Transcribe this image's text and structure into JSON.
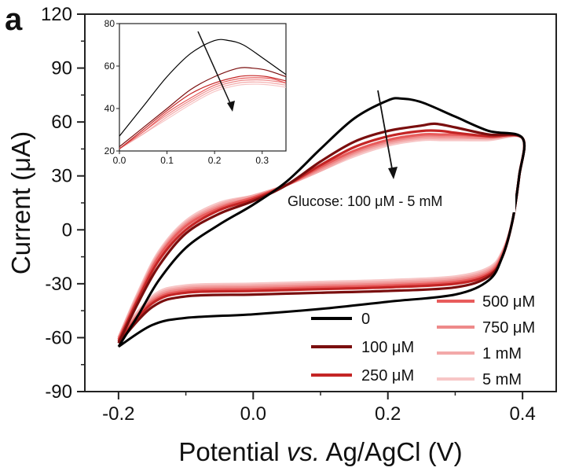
{
  "panel_label": "a",
  "chart_data": [
    {
      "type": "line",
      "subtype": "cyclic-voltammogram",
      "xlabel_parts": [
        "Potential ",
        "vs.",
        " Ag/AgCl (V)"
      ],
      "ylabel": "Current (μA)",
      "xlim": [
        -0.25,
        0.45
      ],
      "ylim": [
        -90,
        120
      ],
      "xticks": [
        -0.2,
        0.0,
        0.2,
        0.4
      ],
      "xtick_labels": [
        "-0.2",
        "0.0",
        "0.2",
        "0.4"
      ],
      "yticks": [
        -90,
        -60,
        -30,
        0,
        30,
        60,
        90,
        120
      ],
      "ytick_labels": [
        "-90",
        "-60",
        "-30",
        "0",
        "30",
        "60",
        "90",
        "120"
      ],
      "grid": false,
      "legend_position": "bottom-right",
      "annotation": "Glucose: 100 μM - 5 mM",
      "series": [
        {
          "name": "0",
          "color": "#000000",
          "anodic": [
            [
              -0.2,
              -65
            ],
            [
              -0.17,
              -47
            ],
            [
              -0.14,
              -28
            ],
            [
              -0.1,
              -10
            ],
            [
              -0.05,
              3
            ],
            [
              0.0,
              14
            ],
            [
              0.05,
              27
            ],
            [
              0.1,
              45
            ],
            [
              0.15,
              62
            ],
            [
              0.2,
              72
            ],
            [
              0.22,
              73
            ],
            [
              0.25,
              71
            ],
            [
              0.3,
              63
            ],
            [
              0.35,
              55
            ],
            [
              0.4,
              51
            ]
          ],
          "cathodic": [
            [
              0.4,
              51
            ],
            [
              0.395,
              30
            ],
            [
              0.385,
              5
            ],
            [
              0.37,
              -15
            ],
            [
              0.35,
              -28
            ],
            [
              0.3,
              -36
            ],
            [
              0.2,
              -40
            ],
            [
              0.1,
              -44
            ],
            [
              0.0,
              -47
            ],
            [
              -0.1,
              -49
            ],
            [
              -0.15,
              -53
            ],
            [
              -0.2,
              -65
            ]
          ]
        },
        {
          "name": "100 μM",
          "color": "#7a0e0e",
          "anodic": [
            [
              -0.2,
              -63
            ],
            [
              -0.17,
              -40
            ],
            [
              -0.14,
              -20
            ],
            [
              -0.1,
              -2
            ],
            [
              -0.05,
              9
            ],
            [
              0.0,
              16
            ],
            [
              0.05,
              25
            ],
            [
              0.1,
              38
            ],
            [
              0.15,
              49
            ],
            [
              0.2,
              55
            ],
            [
              0.25,
              58
            ],
            [
              0.27,
              59
            ],
            [
              0.3,
              57
            ],
            [
              0.35,
              53
            ],
            [
              0.4,
              51
            ]
          ],
          "cathodic": [
            [
              0.4,
              51
            ],
            [
              0.395,
              30
            ],
            [
              0.385,
              5
            ],
            [
              0.37,
              -15
            ],
            [
              0.35,
              -26
            ],
            [
              0.3,
              -32
            ],
            [
              0.2,
              -34
            ],
            [
              0.1,
              -35
            ],
            [
              0.0,
              -36
            ],
            [
              -0.1,
              -37
            ],
            [
              -0.15,
              -43
            ],
            [
              -0.2,
              -63
            ]
          ]
        },
        {
          "name": "250 μM",
          "color": "#c42525",
          "anodic": [
            [
              -0.2,
              -62
            ],
            [
              -0.17,
              -38
            ],
            [
              -0.14,
              -17
            ],
            [
              -0.1,
              0
            ],
            [
              -0.05,
              11
            ],
            [
              0.0,
              17
            ],
            [
              0.05,
              25
            ],
            [
              0.1,
              36
            ],
            [
              0.15,
              46
            ],
            [
              0.2,
              52
            ],
            [
              0.25,
              55
            ],
            [
              0.28,
              55
            ],
            [
              0.3,
              54
            ],
            [
              0.35,
              52
            ],
            [
              0.4,
              51
            ]
          ],
          "cathodic": [
            [
              0.4,
              51
            ],
            [
              0.395,
              30
            ],
            [
              0.385,
              5
            ],
            [
              0.37,
              -15
            ],
            [
              0.35,
              -25
            ],
            [
              0.3,
              -30
            ],
            [
              0.2,
              -32
            ],
            [
              0.1,
              -33
            ],
            [
              0.0,
              -34
            ],
            [
              -0.1,
              -35
            ],
            [
              -0.15,
              -41
            ],
            [
              -0.2,
              -62
            ]
          ]
        },
        {
          "name": "500 μM",
          "color": "#e85c5c",
          "anodic": [
            [
              -0.2,
              -61
            ],
            [
              -0.17,
              -37
            ],
            [
              -0.14,
              -15
            ],
            [
              -0.1,
              2
            ],
            [
              -0.05,
              12
            ],
            [
              0.0,
              18
            ],
            [
              0.05,
              25
            ],
            [
              0.1,
              35
            ],
            [
              0.15,
              44
            ],
            [
              0.2,
              50
            ],
            [
              0.25,
              53
            ],
            [
              0.28,
              53
            ],
            [
              0.3,
              53
            ],
            [
              0.35,
              52
            ],
            [
              0.4,
              51
            ]
          ],
          "cathodic": [
            [
              0.4,
              51
            ],
            [
              0.395,
              30
            ],
            [
              0.385,
              5
            ],
            [
              0.37,
              -14
            ],
            [
              0.35,
              -24
            ],
            [
              0.3,
              -29
            ],
            [
              0.2,
              -31
            ],
            [
              0.1,
              -32
            ],
            [
              0.0,
              -33
            ],
            [
              -0.1,
              -34
            ],
            [
              -0.15,
              -40
            ],
            [
              -0.2,
              -61
            ]
          ]
        },
        {
          "name": "750 μM",
          "color": "#ee8a8a",
          "anodic": [
            [
              -0.2,
              -61
            ],
            [
              -0.17,
              -36
            ],
            [
              -0.14,
              -14
            ],
            [
              -0.1,
              3
            ],
            [
              -0.05,
              13
            ],
            [
              0.0,
              18
            ],
            [
              0.05,
              25
            ],
            [
              0.1,
              34
            ],
            [
              0.15,
              43
            ],
            [
              0.2,
              49
            ],
            [
              0.25,
              52
            ],
            [
              0.28,
              52
            ],
            [
              0.3,
              52
            ],
            [
              0.35,
              51
            ],
            [
              0.4,
              51
            ]
          ],
          "cathodic": [
            [
              0.4,
              51
            ],
            [
              0.395,
              30
            ],
            [
              0.385,
              5
            ],
            [
              0.37,
              -13
            ],
            [
              0.35,
              -23
            ],
            [
              0.3,
              -28
            ],
            [
              0.2,
              -30
            ],
            [
              0.1,
              -31
            ],
            [
              0.0,
              -32
            ],
            [
              -0.1,
              -33
            ],
            [
              -0.15,
              -39
            ],
            [
              -0.2,
              -61
            ]
          ]
        },
        {
          "name": "1 mM",
          "color": "#f3a9a9",
          "anodic": [
            [
              -0.2,
              -60
            ],
            [
              -0.17,
              -35
            ],
            [
              -0.14,
              -13
            ],
            [
              -0.1,
              4
            ],
            [
              -0.05,
              14
            ],
            [
              0.0,
              19
            ],
            [
              0.05,
              25
            ],
            [
              0.1,
              33
            ],
            [
              0.15,
              42
            ],
            [
              0.2,
              48
            ],
            [
              0.25,
              51
            ],
            [
              0.28,
              51
            ],
            [
              0.3,
              51
            ],
            [
              0.35,
              51
            ],
            [
              0.4,
              51
            ]
          ],
          "cathodic": [
            [
              0.4,
              51
            ],
            [
              0.395,
              30
            ],
            [
              0.385,
              5
            ],
            [
              0.37,
              -13
            ],
            [
              0.35,
              -22
            ],
            [
              0.3,
              -27
            ],
            [
              0.2,
              -29
            ],
            [
              0.1,
              -30
            ],
            [
              0.0,
              -31
            ],
            [
              -0.1,
              -32
            ],
            [
              -0.15,
              -38
            ],
            [
              -0.2,
              -60
            ]
          ]
        },
        {
          "name": "5 mM",
          "color": "#f7c6c6",
          "anodic": [
            [
              -0.2,
              -60
            ],
            [
              -0.17,
              -34
            ],
            [
              -0.14,
              -12
            ],
            [
              -0.1,
              5
            ],
            [
              -0.05,
              15
            ],
            [
              0.0,
              19
            ],
            [
              0.05,
              25
            ],
            [
              0.1,
              33
            ],
            [
              0.15,
              41
            ],
            [
              0.2,
              47
            ],
            [
              0.25,
              50
            ],
            [
              0.28,
              50
            ],
            [
              0.3,
              50
            ],
            [
              0.35,
              50
            ],
            [
              0.4,
              51
            ]
          ],
          "cathodic": [
            [
              0.4,
              51
            ],
            [
              0.395,
              30
            ],
            [
              0.385,
              5
            ],
            [
              0.37,
              -12
            ],
            [
              0.35,
              -21
            ],
            [
              0.3,
              -26
            ],
            [
              0.2,
              -28
            ],
            [
              0.1,
              -29
            ],
            [
              0.0,
              -30
            ],
            [
              -0.1,
              -31
            ],
            [
              -0.15,
              -37
            ],
            [
              -0.2,
              -60
            ]
          ]
        }
      ]
    },
    {
      "type": "line",
      "subtype": "inset-zoom",
      "xlim": [
        0.0,
        0.35
      ],
      "ylim": [
        20,
        80
      ],
      "xticks": [
        0.0,
        0.1,
        0.2,
        0.3
      ],
      "xtick_labels": [
        "0.0",
        "0.1",
        "0.2",
        "0.3"
      ],
      "yticks": [
        20,
        40,
        60,
        80
      ],
      "ytick_labels": [
        "20",
        "40",
        "60",
        "80"
      ],
      "grid": false,
      "series": [
        {
          "color": "#000000",
          "points": [
            [
              0.0,
              27
            ],
            [
              0.05,
              41
            ],
            [
              0.1,
              55
            ],
            [
              0.15,
              66
            ],
            [
              0.2,
              72
            ],
            [
              0.23,
              72
            ],
            [
              0.26,
              70
            ],
            [
              0.3,
              64
            ],
            [
              0.35,
              56
            ]
          ]
        },
        {
          "color": "#7a0e0e",
          "points": [
            [
              0.0,
              22
            ],
            [
              0.05,
              31
            ],
            [
              0.1,
              40
            ],
            [
              0.15,
              49
            ],
            [
              0.2,
              55
            ],
            [
              0.25,
              59
            ],
            [
              0.28,
              59
            ],
            [
              0.31,
              58
            ],
            [
              0.35,
              55
            ]
          ]
        },
        {
          "color": "#c42525",
          "points": [
            [
              0.0,
              21
            ],
            [
              0.05,
              30
            ],
            [
              0.1,
              39
            ],
            [
              0.15,
              47
            ],
            [
              0.2,
              52
            ],
            [
              0.25,
              55
            ],
            [
              0.28,
              55.5
            ],
            [
              0.31,
              55
            ],
            [
              0.35,
              53
            ]
          ]
        },
        {
          "color": "#e85c5c",
          "points": [
            [
              0.0,
              21
            ],
            [
              0.05,
              29
            ],
            [
              0.1,
              38
            ],
            [
              0.15,
              45
            ],
            [
              0.2,
              51
            ],
            [
              0.25,
              54
            ],
            [
              0.29,
              54.5
            ],
            [
              0.32,
              54
            ],
            [
              0.35,
              52
            ]
          ]
        },
        {
          "color": "#ee8a8a",
          "points": [
            [
              0.0,
              21
            ],
            [
              0.05,
              29
            ],
            [
              0.1,
              37
            ],
            [
              0.15,
              44
            ],
            [
              0.2,
              50
            ],
            [
              0.25,
              53
            ],
            [
              0.29,
              53.5
            ],
            [
              0.32,
              53
            ],
            [
              0.35,
              52
            ]
          ]
        },
        {
          "color": "#f3a9a9",
          "points": [
            [
              0.0,
              21
            ],
            [
              0.05,
              28
            ],
            [
              0.1,
              36
            ],
            [
              0.15,
              43
            ],
            [
              0.2,
              49
            ],
            [
              0.25,
              52
            ],
            [
              0.29,
              52.5
            ],
            [
              0.32,
              52
            ],
            [
              0.35,
              51
            ]
          ]
        },
        {
          "color": "#f7c6c6",
          "points": [
            [
              0.0,
              21
            ],
            [
              0.05,
              28
            ],
            [
              0.1,
              35
            ],
            [
              0.15,
              42
            ],
            [
              0.2,
              48
            ],
            [
              0.25,
              51
            ],
            [
              0.29,
              51.5
            ],
            [
              0.32,
              51
            ],
            [
              0.35,
              50
            ]
          ]
        }
      ]
    }
  ]
}
